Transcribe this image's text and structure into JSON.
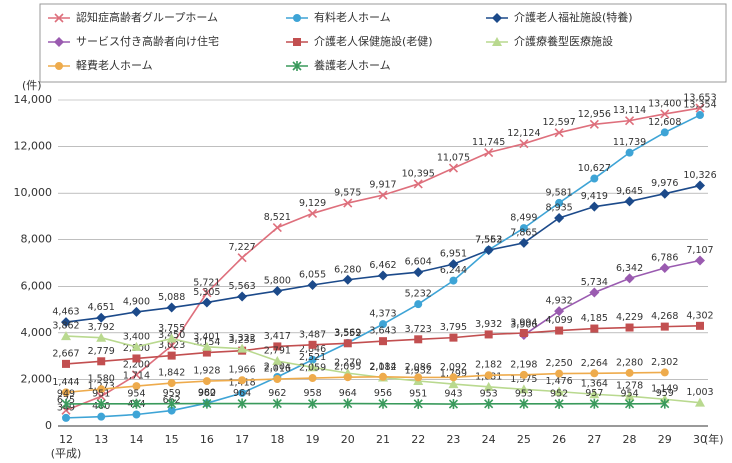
{
  "chart_data": {
    "type": "line",
    "y_unit": "(件)",
    "x_unit": "(年)",
    "era": "(平成)",
    "categories": [
      "12",
      "13",
      "14",
      "15",
      "16",
      "17",
      "18",
      "19",
      "20",
      "21",
      "22",
      "23",
      "24",
      "25",
      "26",
      "27",
      "28",
      "29",
      "30"
    ],
    "ylim": [
      0,
      14000
    ],
    "yticks": [
      0,
      {
        "value": 2000,
        "label": "2,000"
      },
      {
        "value": 4000,
        "label": "4,000"
      },
      {
        "value": 6000,
        "label": "6,000"
      },
      {
        "value": 8000,
        "label": "8,000"
      },
      {
        "value": 10000,
        "label": "10,000"
      },
      {
        "value": 12000,
        "label": "12,000"
      },
      {
        "value": 14000,
        "label": "14,000"
      }
    ],
    "grid": true,
    "series": [
      {
        "name": "認知症高齢者グループホーム",
        "color": "#de6f7c",
        "marker": "x",
        "values": [
          675,
          1273,
          2200,
          3450,
          5721,
          7227,
          8521,
          9129,
          9575,
          9917,
          10395,
          11075,
          11745,
          12124,
          12597,
          12956,
          13114,
          13400,
          13653
        ],
        "value_labels": [
          "675",
          "1,273",
          "2,200",
          "3,450",
          "5,721",
          "7,227",
          "8,521",
          "9,129",
          "9,575",
          "9,917",
          "10,395",
          "11,075",
          "11,745",
          "12,124",
          "12,597",
          "12,956",
          "13,114",
          "13,400",
          "13,653"
        ]
      },
      {
        "name": "有料老人ホーム",
        "color": "#3ea4d6",
        "marker": "circle",
        "values": [
          349,
          400,
          494,
          662,
          980,
          1418,
          2104,
          2846,
          3569,
          4373,
          5232,
          6244,
          7563,
          8499,
          9581,
          10627,
          11739,
          12608,
          13354
        ],
        "value_labels": [
          "349",
          "400",
          "494",
          "662",
          "980",
          "1,418",
          "2,104",
          "2,846",
          "3,569",
          "4,373",
          "5,232",
          "6,244",
          "7,563",
          "8,499",
          "9,581",
          "10,627",
          "11,739",
          "12,608",
          "13,354"
        ]
      },
      {
        "name": "介護老人福祉施設(特養)",
        "color": "#1c4a8a",
        "marker": "diamond",
        "values": [
          4463,
          4651,
          4900,
          5088,
          5305,
          5563,
          5800,
          6055,
          6280,
          6462,
          6604,
          6951,
          7552,
          7865,
          8935,
          9419,
          9645,
          9976,
          10326
        ],
        "value_labels": [
          "4,463",
          "4,651",
          "4,900",
          "5,088",
          "5,305",
          "5,563",
          "5,800",
          "6,055",
          "6,280",
          "6,462",
          "6,604",
          "6,951",
          "7,552",
          "7,865",
          "8,935",
          "9,419",
          "9,645",
          "9,976",
          "10,326"
        ]
      },
      {
        "name": "サービス付き高齢者向け住宅",
        "color": "#9a5bb0",
        "marker": "diamond",
        "values": [
          null,
          null,
          null,
          null,
          null,
          null,
          null,
          null,
          null,
          null,
          null,
          null,
          null,
          3906,
          4932,
          5734,
          6342,
          6786,
          7107
        ],
        "value_labels": [
          null,
          null,
          null,
          null,
          null,
          null,
          null,
          null,
          null,
          null,
          null,
          null,
          null,
          "3,906",
          "4,932",
          "5,734",
          "6,342",
          "6,786",
          "7,107"
        ]
      },
      {
        "name": "介護老人保健施設(老健)",
        "color": "#c24f50",
        "marker": "square",
        "values": [
          2667,
          2779,
          2900,
          3023,
          3154,
          3235,
          3417,
          3487,
          3552,
          3643,
          3723,
          3795,
          3932,
          3994,
          4099,
          4185,
          4229,
          4268,
          4302
        ],
        "value_labels": [
          "2,667",
          "2,779",
          "2,900",
          "3,023",
          "3,154",
          "3,235",
          "3,417",
          "3,487",
          "3,552",
          "3,643",
          "3,723",
          "3,795",
          "3,932",
          "3,994",
          "4,099",
          "4,185",
          "4,229",
          "4,268",
          "4,302"
        ]
      },
      {
        "name": "介護療養型医療施設",
        "color": "#b9d98f",
        "marker": "triangle",
        "values": [
          3862,
          3792,
          3400,
          3755,
          3401,
          3322,
          2791,
          2521,
          2270,
          2082,
          1932,
          1799,
          1681,
          1575,
          1476,
          1364,
          1278,
          1149,
          1003
        ],
        "value_labels": [
          "3,862",
          "3,792",
          "3,400",
          "3,755",
          "3,401",
          "3,322",
          "2,791",
          "2,521",
          "2,270",
          "2,082",
          "1,932",
          "1,799",
          "1,681",
          "1,575",
          "1,476",
          "1,364",
          "1,278",
          "1,149",
          "1,003"
        ]
      },
      {
        "name": "軽費老人ホーム",
        "color": "#eeab4c",
        "marker": "circle",
        "values": [
          1444,
          1580,
          1714,
          1842,
          1928,
          1966,
          2016,
          2059,
          2095,
          2114,
          2086,
          2092,
          2182,
          2198,
          2250,
          2264,
          2280,
          2302,
          null
        ],
        "value_labels": [
          "1,444",
          "1,580",
          "1,714",
          "1,842",
          "1,928",
          "1,966",
          "2,016",
          "2,059",
          "2,095",
          "2,114",
          "2,086",
          "2,092",
          "2,182",
          "2,198",
          "2,250",
          "2,264",
          "2,280",
          "2,302",
          null
        ]
      },
      {
        "name": "養護老人ホーム",
        "color": "#3a9a5c",
        "marker": "asterisk",
        "values": [
          949,
          951,
          954,
          959,
          962,
          964,
          962,
          958,
          964,
          956,
          951,
          943,
          953,
          953,
          952,
          957,
          954,
          959,
          null
        ],
        "value_labels": [
          "949",
          "951",
          "954",
          "959",
          "962",
          "964",
          "962",
          "958",
          "964",
          "956",
          "951",
          "943",
          "953",
          "953",
          "952",
          "957",
          "954",
          "959",
          null
        ]
      }
    ]
  }
}
